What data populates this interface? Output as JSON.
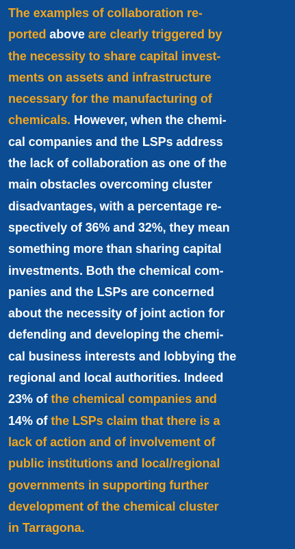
{
  "lines": [
    [
      {
        "text": "The examples of collaboration re-",
        "color": "#f3a51d"
      }
    ],
    [
      {
        "text": "ported",
        "color": "#f3a51d"
      },
      {
        "text": " above ",
        "color": "#ffffff"
      },
      {
        "text": "are clearly triggered by",
        "color": "#f3a51d"
      }
    ],
    [
      {
        "text": "the necessity to share capital invest-",
        "color": "#f3a51d"
      }
    ],
    [
      {
        "text": "ments on assets and infrastructure",
        "color": "#f3a51d"
      }
    ],
    [
      {
        "text": "necessary for the manufacturing of",
        "color": "#f3a51d"
      }
    ],
    [
      {
        "text": "chemicals.",
        "color": "#f3a51d"
      },
      {
        "text": " However, when the chemi-",
        "color": "#ffffff"
      }
    ],
    [
      {
        "text": "cal companies and the LSPs address",
        "color": "#ffffff"
      }
    ],
    [
      {
        "text": "the lack of collaboration as one of the",
        "color": "#ffffff"
      }
    ],
    [
      {
        "text": "main obstacles overcoming cluster",
        "color": "#ffffff"
      }
    ],
    [
      {
        "text": "disadvantages, with a percentage re-",
        "color": "#ffffff"
      }
    ],
    [
      {
        "text": "spectively of 36% and 32%, they mean",
        "color": "#ffffff"
      }
    ],
    [
      {
        "text": "something more than sharing capital",
        "color": "#ffffff"
      }
    ],
    [
      {
        "text": "investments. Both the chemical com-",
        "color": "#ffffff"
      }
    ],
    [
      {
        "text": "panies and the LSPs are concerned",
        "color": "#ffffff"
      }
    ],
    [
      {
        "text": "about the necessity of joint action for",
        "color": "#ffffff"
      }
    ],
    [
      {
        "text": "defending and developing the chemi-",
        "color": "#ffffff"
      }
    ],
    [
      {
        "text": "cal business interests and lobbying the",
        "color": "#ffffff"
      }
    ],
    [
      {
        "text": "regional and local authorities. Indeed",
        "color": "#ffffff"
      }
    ],
    [
      {
        "text": "23% of ",
        "color": "#ffffff"
      },
      {
        "text": "the chemical companies and",
        "color": "#f3a51d"
      }
    ],
    [
      {
        "text": "14% of ",
        "color": "#ffffff"
      },
      {
        "text": "the LSPs claim that there is a",
        "color": "#f3a51d"
      }
    ],
    [
      {
        "text": "lack of action and of involvement of",
        "color": "#f3a51d"
      }
    ],
    [
      {
        "text": "public institutions and local/regional",
        "color": "#f3a51d"
      }
    ],
    [
      {
        "text": "governments in supporting further",
        "color": "#f3a51d"
      }
    ],
    [
      {
        "text": "development of the chemical cluster",
        "color": "#f3a51d"
      }
    ],
    [
      {
        "text": "in Tarragona.",
        "color": "#f3a51d"
      }
    ]
  ]
}
